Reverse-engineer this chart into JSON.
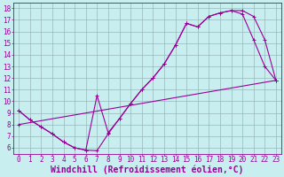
{
  "xlabel": "Windchill (Refroidissement éolien,°C)",
  "background_color": "#c8eef0",
  "line_color": "#990099",
  "xlim": [
    -0.5,
    23.5
  ],
  "ylim": [
    5.5,
    18.5
  ],
  "xticks": [
    0,
    1,
    2,
    3,
    4,
    5,
    6,
    7,
    8,
    9,
    10,
    11,
    12,
    13,
    14,
    15,
    16,
    17,
    18,
    19,
    20,
    21,
    22,
    23
  ],
  "yticks": [
    6,
    7,
    8,
    9,
    10,
    11,
    12,
    13,
    14,
    15,
    16,
    17,
    18
  ],
  "line1_x": [
    0,
    1,
    2,
    3,
    4,
    5,
    6,
    7,
    8,
    9,
    10,
    11,
    12,
    13,
    14,
    15,
    16,
    17,
    18,
    19,
    20,
    21,
    22,
    23
  ],
  "line1_y": [
    9.2,
    8.4,
    7.8,
    7.2,
    6.5,
    6.0,
    5.8,
    5.75,
    7.2,
    8.5,
    9.8,
    11.0,
    12.0,
    13.2,
    14.8,
    16.7,
    16.4,
    17.3,
    17.6,
    17.8,
    17.8,
    17.3,
    15.3,
    11.8
  ],
  "line2_x": [
    0,
    1,
    2,
    3,
    4,
    5,
    6,
    7,
    8,
    9,
    10,
    11,
    12,
    13,
    14,
    15,
    16,
    17,
    18,
    19,
    20,
    21,
    22,
    23
  ],
  "line2_y": [
    9.2,
    8.4,
    7.8,
    7.2,
    6.5,
    6.0,
    5.8,
    10.5,
    7.3,
    8.5,
    9.8,
    11.0,
    12.0,
    13.2,
    14.8,
    16.7,
    16.4,
    17.3,
    17.6,
    17.8,
    17.5,
    15.3,
    13.0,
    11.8
  ],
  "line3_x": [
    0,
    23
  ],
  "line3_y": [
    8.0,
    11.8
  ],
  "grid_color": "#9ab8bb",
  "tick_fontsize": 5.5,
  "xlabel_fontsize": 7.0,
  "marker_size": 2.5,
  "linewidth": 0.8
}
